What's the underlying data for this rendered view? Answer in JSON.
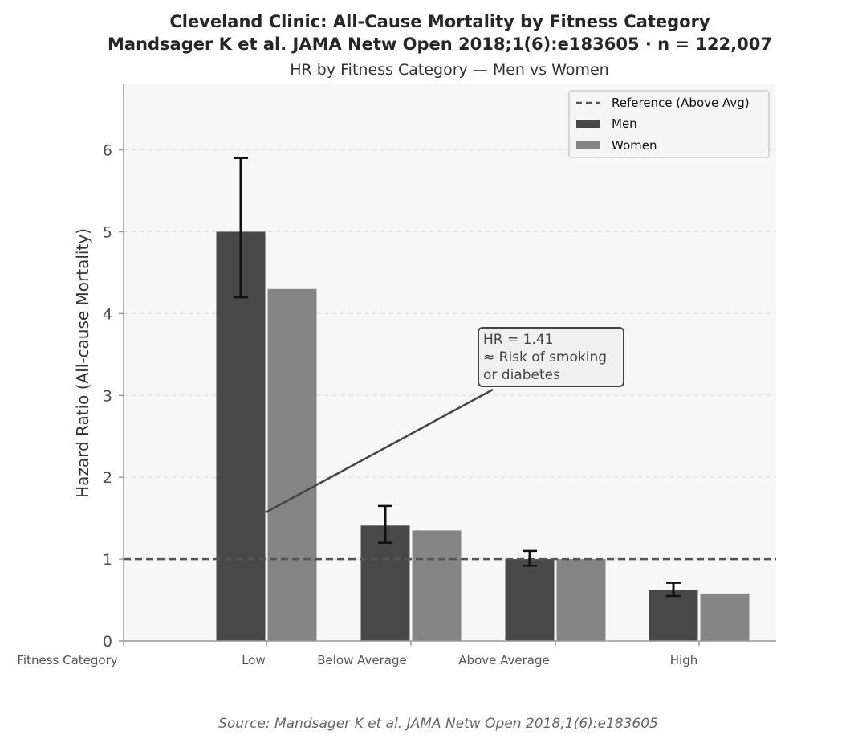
{
  "chart_data": {
    "type": "bar",
    "title_line1": "Cleveland Clinic: All-Cause Mortality by Fitness Category",
    "title_line2": "Mandsager K et al. JAMA Netw Open 2018;1(6):e183605  ·  n = 122,007",
    "subtitle": "HR by Fitness Category — Men vs Women",
    "ylabel": "Hazard Ratio (All-cause Mortality)",
    "xlabel": "Fitness Category",
    "categories": [
      "Low",
      "Below Average",
      "Above Average",
      "High"
    ],
    "series": [
      {
        "name": "Men",
        "values": [
          5.0,
          1.41,
          1.0,
          0.62
        ],
        "ci_low": [
          4.2,
          1.2,
          0.92,
          0.55
        ],
        "ci_high": [
          5.9,
          1.65,
          1.1,
          0.71
        ],
        "color": "#484848"
      },
      {
        "name": "Women",
        "values": [
          4.3,
          1.35,
          1.0,
          0.58
        ],
        "color": "#858585"
      }
    ],
    "reference": {
      "label": "Reference (Above Avg)",
      "value": 1.0
    },
    "yticks": [
      0,
      1,
      2,
      3,
      4,
      5,
      6
    ],
    "ylim": [
      0,
      6.8
    ],
    "grid": true,
    "legend_position": "top-right",
    "annotation": {
      "text": [
        "HR = 1.41",
        "≈ Risk of smoking",
        "or diabetes"
      ],
      "points_to": {
        "category": "Below Average",
        "value": 1.57
      }
    },
    "source": "Source: Mandsager K et al. JAMA Netw Open 2018;1(6):e183605",
    "colors": {
      "men": "#484848",
      "women": "#858585",
      "reference": "#555555",
      "plot_bg": "#f7f7f7"
    }
  }
}
